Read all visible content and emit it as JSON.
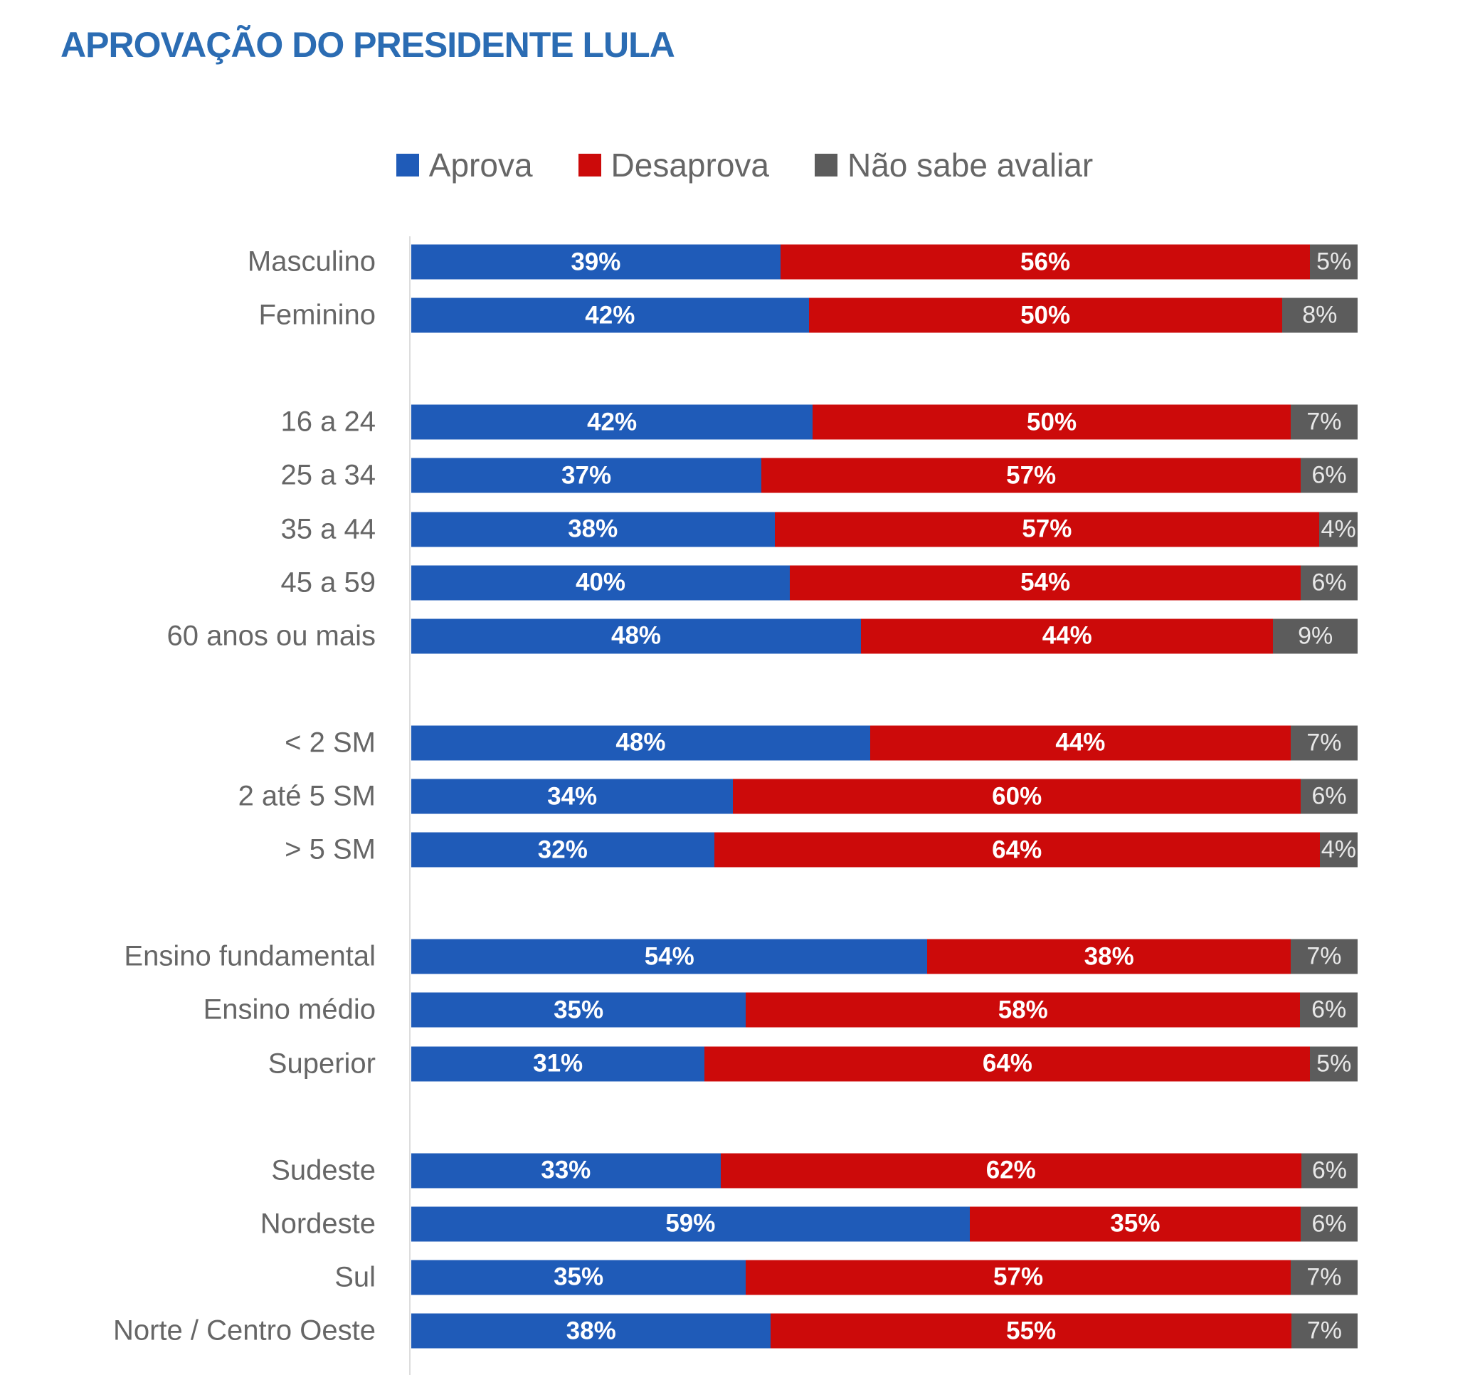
{
  "chart_data": {
    "type": "bar",
    "orientation": "horizontal",
    "stacked": true,
    "title": "APROVAÇÃO DO PRESIDENTE LULA",
    "legend_position": "top",
    "grid": false,
    "series": [
      {
        "name": "Aprova",
        "color": "#1f5bb8"
      },
      {
        "name": "Desaprova",
        "color": "#cc0a0a"
      },
      {
        "name": "Não sabe avaliar",
        "color": "#5c5c5c"
      }
    ],
    "groups": [
      [
        {
          "category": "Masculino",
          "values": [
            39,
            56,
            5
          ]
        },
        {
          "category": "Feminino",
          "values": [
            42,
            50,
            8
          ]
        }
      ],
      [
        {
          "category": "16 a 24",
          "values": [
            42,
            50,
            7
          ]
        },
        {
          "category": "25 a 34",
          "values": [
            37,
            57,
            6
          ]
        },
        {
          "category": "35 a 44",
          "values": [
            38,
            57,
            4
          ]
        },
        {
          "category": "45 a 59",
          "values": [
            40,
            54,
            6
          ]
        },
        {
          "category": "60 anos ou mais",
          "values": [
            48,
            44,
            9
          ]
        }
      ],
      [
        {
          "category": "< 2 SM",
          "values": [
            48,
            44,
            7
          ]
        },
        {
          "category": "2 até 5 SM",
          "values": [
            34,
            60,
            6
          ]
        },
        {
          "category": "> 5 SM",
          "values": [
            32,
            64,
            4
          ]
        }
      ],
      [
        {
          "category": "Ensino fundamental",
          "values": [
            54,
            38,
            7
          ]
        },
        {
          "category": "Ensino médio",
          "values": [
            35,
            58,
            6
          ]
        },
        {
          "category": "Superior",
          "values": [
            31,
            64,
            5
          ]
        }
      ],
      [
        {
          "category": "Sudeste",
          "values": [
            33,
            62,
            6
          ]
        },
        {
          "category": "Nordeste",
          "values": [
            59,
            35,
            6
          ]
        },
        {
          "category": "Sul",
          "values": [
            35,
            57,
            7
          ]
        },
        {
          "category": "Norte / Centro Oeste",
          "values": [
            38,
            55,
            7
          ]
        }
      ]
    ],
    "value_suffix": "%"
  }
}
